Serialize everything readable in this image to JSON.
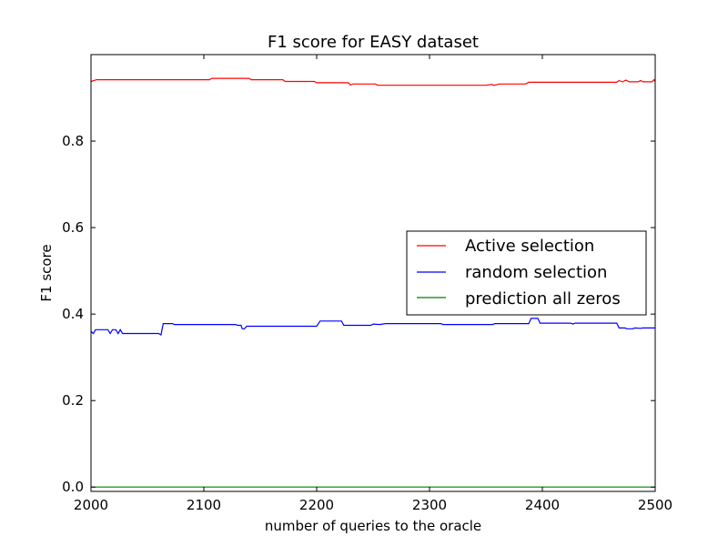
{
  "chart_data": {
    "type": "line",
    "title": "F1 score for EASY dataset",
    "xlabel": "number of queries to the oracle",
    "ylabel": "F1 score",
    "xlim": [
      2000,
      2500
    ],
    "ylim": [
      -0.01,
      1.0
    ],
    "xticks": [
      2000,
      2100,
      2200,
      2300,
      2400,
      2500
    ],
    "xtick_labels": [
      "2000",
      "2100",
      "2200",
      "2300",
      "2400",
      "2500"
    ],
    "yticks": [
      0.0,
      0.2,
      0.4,
      0.6,
      0.8
    ],
    "ytick_labels": [
      "0.0",
      "0.2",
      "0.4",
      "0.6",
      "0.8"
    ],
    "grid": false,
    "legend_position": "right",
    "series": [
      {
        "name": "Active selection",
        "color": "#ff0000",
        "points": [
          [
            2000,
            0.938
          ],
          [
            2005,
            0.942
          ],
          [
            2050,
            0.942
          ],
          [
            2105,
            0.942
          ],
          [
            2107,
            0.945
          ],
          [
            2140,
            0.945
          ],
          [
            2142,
            0.942
          ],
          [
            2170,
            0.942
          ],
          [
            2172,
            0.938
          ],
          [
            2198,
            0.938
          ],
          [
            2200,
            0.935
          ],
          [
            2228,
            0.935
          ],
          [
            2230,
            0.93
          ],
          [
            2232,
            0.932
          ],
          [
            2252,
            0.932
          ],
          [
            2254,
            0.929
          ],
          [
            2300,
            0.929
          ],
          [
            2350,
            0.929
          ],
          [
            2355,
            0.931
          ],
          [
            2357,
            0.929
          ],
          [
            2362,
            0.932
          ],
          [
            2385,
            0.932
          ],
          [
            2388,
            0.936
          ],
          [
            2430,
            0.936
          ],
          [
            2466,
            0.936
          ],
          [
            2468,
            0.94
          ],
          [
            2471,
            0.937
          ],
          [
            2474,
            0.941
          ],
          [
            2477,
            0.937
          ],
          [
            2485,
            0.937
          ],
          [
            2487,
            0.94
          ],
          [
            2489,
            0.937
          ],
          [
            2497,
            0.937
          ],
          [
            2499,
            0.942
          ],
          [
            2500,
            0.937
          ]
        ]
      },
      {
        "name": "random selection",
        "color": "#0000ff",
        "points": [
          [
            2000,
            0.36
          ],
          [
            2002,
            0.355
          ],
          [
            2004,
            0.364
          ],
          [
            2015,
            0.364
          ],
          [
            2017,
            0.355
          ],
          [
            2019,
            0.364
          ],
          [
            2022,
            0.364
          ],
          [
            2024,
            0.355
          ],
          [
            2026,
            0.364
          ],
          [
            2028,
            0.355
          ],
          [
            2060,
            0.355
          ],
          [
            2062,
            0.352
          ],
          [
            2064,
            0.378
          ],
          [
            2072,
            0.378
          ],
          [
            2074,
            0.376
          ],
          [
            2128,
            0.376
          ],
          [
            2130,
            0.374
          ],
          [
            2133,
            0.374
          ],
          [
            2134,
            0.366
          ],
          [
            2136,
            0.366
          ],
          [
            2138,
            0.372
          ],
          [
            2200,
            0.372
          ],
          [
            2203,
            0.384
          ],
          [
            2222,
            0.384
          ],
          [
            2224,
            0.374
          ],
          [
            2248,
            0.374
          ],
          [
            2250,
            0.377
          ],
          [
            2256,
            0.376
          ],
          [
            2261,
            0.378
          ],
          [
            2310,
            0.378
          ],
          [
            2312,
            0.376
          ],
          [
            2356,
            0.376
          ],
          [
            2358,
            0.378
          ],
          [
            2388,
            0.378
          ],
          [
            2390,
            0.39
          ],
          [
            2396,
            0.39
          ],
          [
            2398,
            0.379
          ],
          [
            2425,
            0.379
          ],
          [
            2427,
            0.377
          ],
          [
            2429,
            0.379
          ],
          [
            2466,
            0.379
          ],
          [
            2468,
            0.368
          ],
          [
            2473,
            0.368
          ],
          [
            2475,
            0.366
          ],
          [
            2480,
            0.366
          ],
          [
            2482,
            0.368
          ],
          [
            2487,
            0.367
          ],
          [
            2489,
            0.368
          ],
          [
            2500,
            0.368
          ]
        ]
      },
      {
        "name": "prediction all zeros",
        "color": "#008000",
        "points": [
          [
            2000,
            0.0
          ],
          [
            2500,
            0.0
          ]
        ]
      }
    ]
  }
}
